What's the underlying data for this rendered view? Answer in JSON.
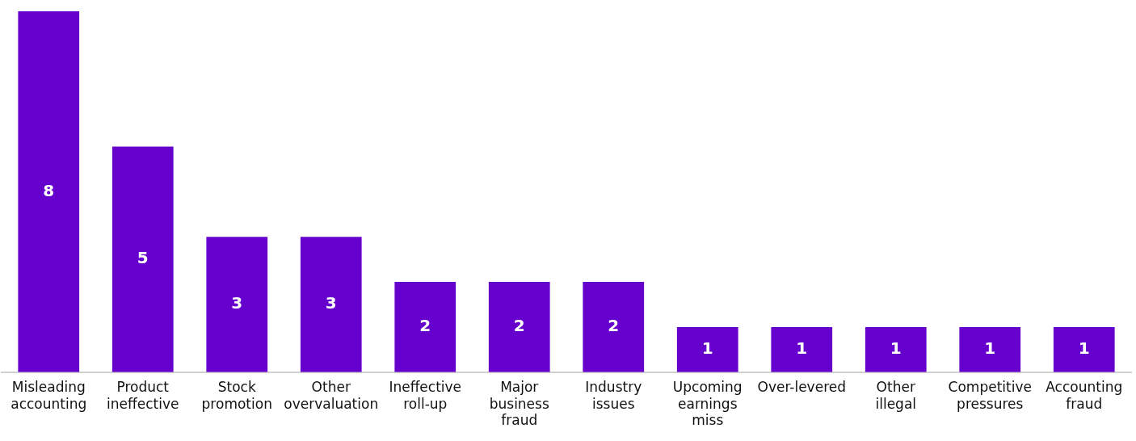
{
  "chart_data": {
    "type": "bar",
    "categories": [
      "Misleading accounting",
      "Product ineffective",
      "Stock promotion",
      "Other overvaluation",
      "Ineffective roll-up",
      "Major business fraud",
      "Industry issues",
      "Upcoming earnings miss",
      "Over-levered",
      "Other illegal",
      "Competitive pressures",
      "Accounting fraud"
    ],
    "values": [
      8,
      5,
      3,
      3,
      2,
      2,
      2,
      1,
      1,
      1,
      1,
      1
    ],
    "color": "#6600cc",
    "data_labels": true,
    "grid": false,
    "legend": false
  }
}
